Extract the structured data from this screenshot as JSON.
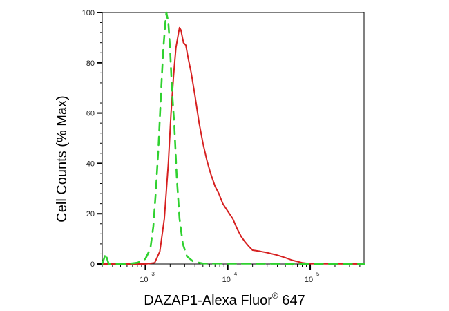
{
  "chart_data": {
    "type": "line",
    "title": "",
    "xlabel": "DAZAP1-Alexa Fluor",
    "xlabel_superscript": "®",
    "xlabel_suffix": " 647",
    "ylabel": "Cell Counts (% Max)",
    "xscale": "log",
    "xlim": [
      300,
      450000
    ],
    "ylim": [
      0,
      100
    ],
    "x_ticks": [
      {
        "value": 1000,
        "base": "10",
        "exp": "3"
      },
      {
        "value": 10000,
        "base": "10",
        "exp": "4"
      },
      {
        "value": 100000,
        "base": "10",
        "exp": "5"
      }
    ],
    "y_ticks": [
      "0",
      "20",
      "40",
      "60",
      "80",
      "100"
    ],
    "grid": false,
    "legend": "none",
    "series": [
      {
        "style": "solid",
        "color": "#d62020",
        "points": [
          [
            300,
            0
          ],
          [
            1000,
            0
          ],
          [
            1300,
            0.5
          ],
          [
            1500,
            5
          ],
          [
            1700,
            18
          ],
          [
            1900,
            40
          ],
          [
            2050,
            60
          ],
          [
            2200,
            75
          ],
          [
            2350,
            86
          ],
          [
            2500,
            91
          ],
          [
            2600,
            94
          ],
          [
            2700,
            93
          ],
          [
            2900,
            88
          ],
          [
            3100,
            87
          ],
          [
            3300,
            82
          ],
          [
            3600,
            76
          ],
          [
            4000,
            67
          ],
          [
            4500,
            56
          ],
          [
            5000,
            48
          ],
          [
            5600,
            41
          ],
          [
            6200,
            36
          ],
          [
            7000,
            31
          ],
          [
            7800,
            28
          ],
          [
            8700,
            24
          ],
          [
            10000,
            21
          ],
          [
            11500,
            18
          ],
          [
            13000,
            14
          ],
          [
            14500,
            11
          ],
          [
            16000,
            9
          ],
          [
            18000,
            7
          ],
          [
            20000,
            5.5
          ],
          [
            25000,
            5
          ],
          [
            30000,
            4.5
          ],
          [
            40000,
            3.5
          ],
          [
            50000,
            2.5
          ],
          [
            60000,
            1.5
          ],
          [
            80000,
            0.5
          ],
          [
            100000,
            0.1
          ],
          [
            450000,
            0
          ]
        ]
      },
      {
        "style": "dashed",
        "color": "#2fd12f",
        "points": [
          [
            300,
            0
          ],
          [
            330,
            4
          ],
          [
            360,
            0
          ],
          [
            600,
            0
          ],
          [
            800,
            0.5
          ],
          [
            1000,
            2
          ],
          [
            1150,
            6
          ],
          [
            1250,
            15
          ],
          [
            1350,
            30
          ],
          [
            1450,
            48
          ],
          [
            1550,
            68
          ],
          [
            1650,
            85
          ],
          [
            1750,
            96
          ],
          [
            1800,
            100
          ],
          [
            1900,
            96
          ],
          [
            2000,
            85
          ],
          [
            2100,
            70
          ],
          [
            2250,
            55
          ],
          [
            2400,
            35
          ],
          [
            2600,
            18
          ],
          [
            2850,
            8
          ],
          [
            3200,
            3
          ],
          [
            3800,
            1
          ],
          [
            5000,
            0.2
          ],
          [
            450000,
            0
          ]
        ]
      }
    ]
  }
}
